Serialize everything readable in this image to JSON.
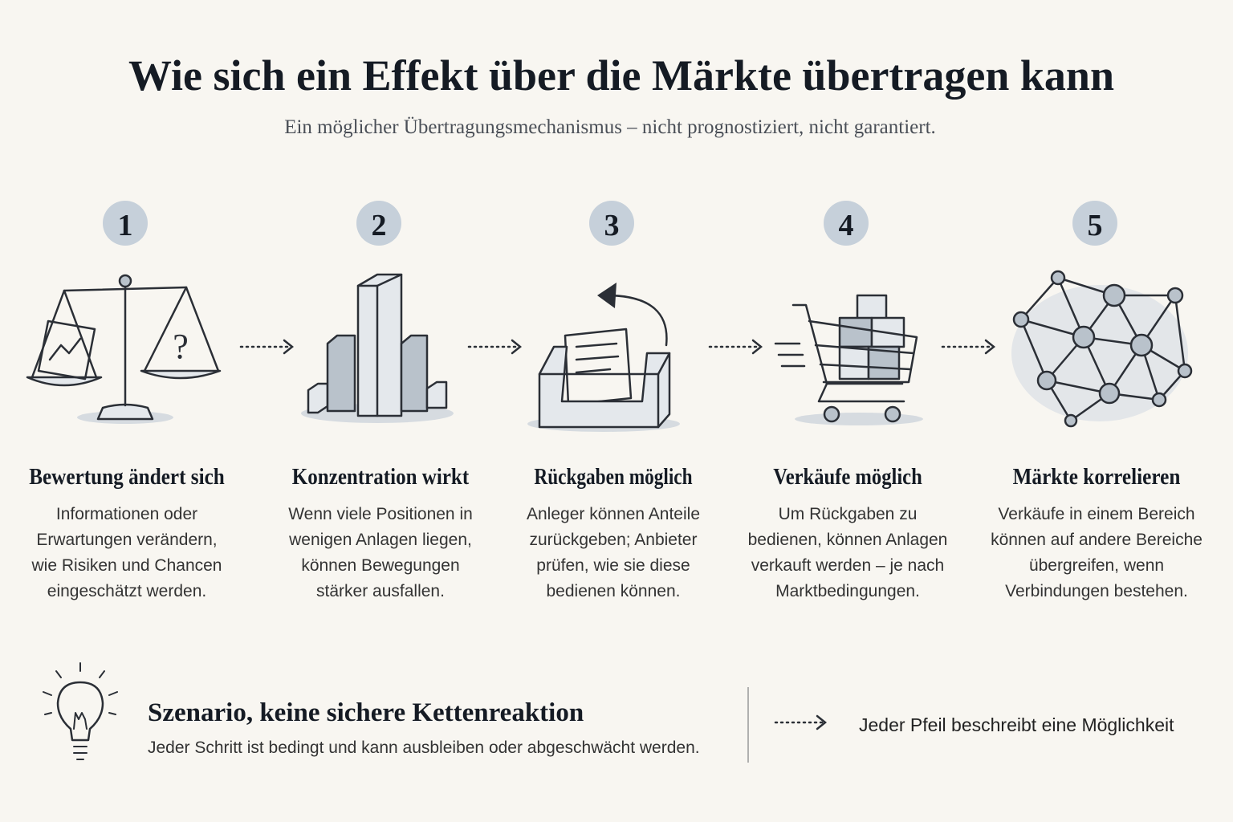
{
  "header": {
    "title": "Wie sich ein Effekt über die Märkte übertragen kann",
    "subtitle": "Ein möglicher Übertragungsmechanismus – nicht prognostiziert, nicht garantiert."
  },
  "steps": [
    {
      "number": "1",
      "title": "Bewertung ändert sich",
      "lines": [
        "Informationen oder",
        "Erwartungen verändern,",
        "wie Risiken und Chancen",
        "eingeschätzt werden."
      ]
    },
    {
      "number": "2",
      "title": "Konzentration wirkt",
      "lines": [
        "Wenn viele Positionen in",
        "wenigen Anlagen liegen,",
        "können Bewegungen",
        "stärker ausfallen."
      ]
    },
    {
      "number": "3",
      "title": "Rückgaben möglich",
      "lines": [
        "Anleger können Anteile",
        "zurückgeben; Anbieter",
        "prüfen, wie sie diese",
        "bedienen können."
      ]
    },
    {
      "number": "4",
      "title": "Verkäufe möglich",
      "lines": [
        "Um Rückgaben zu",
        "bedienen, können Anlagen",
        "verkauft werden – je nach",
        "Marktbedingungen."
      ]
    },
    {
      "number": "5",
      "title": "Märkte korrelieren",
      "lines": [
        "Verkäufe in einem Bereich",
        "können auf andere Bereiche",
        "übergreifen, wenn",
        "Verbindungen bestehen."
      ]
    }
  ],
  "note": {
    "title": "Szenario, keine sichere Kettenreaktion",
    "text": "Jeder Schritt ist bedingt und kann ausbleiben oder abgeschwächt werden."
  },
  "legend": {
    "text": "Jeder Pfeil beschreibt eine Möglichkeit"
  }
}
